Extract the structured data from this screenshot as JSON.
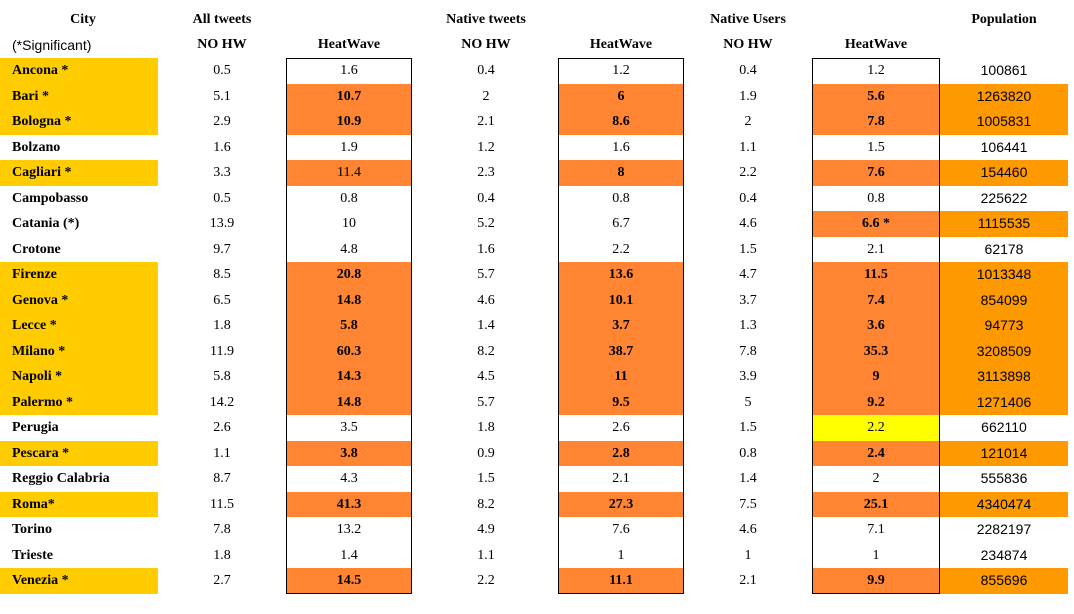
{
  "headers": {
    "city": "City",
    "city_note": "(*Significant)",
    "all_tweets": "All tweets",
    "native_tweets": "Native tweets",
    "native_users": "Native Users",
    "population": "Population",
    "no_hw_1": "NO HW",
    "heatwave_1": "HeatWave",
    "no_hw_2": "NO HW",
    "heatwave_2": "HeatWave",
    "no_hw_3": "NO HW",
    "heatwave_3": "HeatWave"
  },
  "colors": {
    "city_highlight": "#ffcc00",
    "heat_highlight": "#ff8533",
    "pop_highlight": "#ff9900",
    "yellow_highlight": "#ffff00"
  },
  "rows": [
    {
      "city": "Ancona *",
      "cityHL": true,
      "v1": "0.5",
      "v2": "1.6",
      "v2hl": false,
      "v2b": false,
      "v3": "0.4",
      "v4": "1.2",
      "v4hl": false,
      "v4b": false,
      "v5": "0.4",
      "v6": "1.2",
      "v6hl": "",
      "v6b": false,
      "pop": "100861",
      "pophl": false
    },
    {
      "city": "Bari *",
      "cityHL": true,
      "v1": "5.1",
      "v2": "10.7",
      "v2hl": true,
      "v2b": true,
      "v3": "2",
      "v4": "6",
      "v4hl": true,
      "v4b": true,
      "v5": "1.9",
      "v6": "5.6",
      "v6hl": "orange",
      "v6b": true,
      "pop": "1263820",
      "pophl": true
    },
    {
      "city": "Bologna *",
      "cityHL": true,
      "v1": "2.9",
      "v2": "10.9",
      "v2hl": true,
      "v2b": true,
      "v3": "2.1",
      "v4": "8.6",
      "v4hl": true,
      "v4b": true,
      "v5": "2",
      "v6": "7.8",
      "v6hl": "orange",
      "v6b": true,
      "pop": "1005831",
      "pophl": true
    },
    {
      "city": "Bolzano",
      "cityHL": false,
      "v1": "1.6",
      "v2": "1.9",
      "v2hl": false,
      "v2b": false,
      "v3": "1.2",
      "v4": "1.6",
      "v4hl": false,
      "v4b": false,
      "v5": "1.1",
      "v6": "1.5",
      "v6hl": "",
      "v6b": false,
      "pop": "106441",
      "pophl": false
    },
    {
      "city": "Cagliari *",
      "cityHL": true,
      "v1": "3.3",
      "v2": "11.4",
      "v2hl": true,
      "v2b": false,
      "v3": "2.3",
      "v4": "8",
      "v4hl": true,
      "v4b": true,
      "v5": "2.2",
      "v6": "7.6",
      "v6hl": "orange",
      "v6b": true,
      "pop": "154460",
      "pophl": true
    },
    {
      "city": "Campobasso",
      "cityHL": false,
      "v1": "0.5",
      "v2": "0.8",
      "v2hl": false,
      "v2b": false,
      "v3": "0.4",
      "v4": "0.8",
      "v4hl": false,
      "v4b": false,
      "v5": "0.4",
      "v6": "0.8",
      "v6hl": "",
      "v6b": false,
      "pop": "225622",
      "pophl": false
    },
    {
      "city": "Catania (*)",
      "cityHL": false,
      "v1": "13.9",
      "v2": "10",
      "v2hl": false,
      "v2b": false,
      "v3": "5.2",
      "v4": "6.7",
      "v4hl": false,
      "v4b": false,
      "v5": "4.6",
      "v6": "6.6 *",
      "v6hl": "orange",
      "v6b": true,
      "pop": "1115535",
      "pophl": true
    },
    {
      "city": "Crotone",
      "cityHL": false,
      "v1": "9.7",
      "v2": "4.8",
      "v2hl": false,
      "v2b": false,
      "v3": "1.6",
      "v4": "2.2",
      "v4hl": false,
      "v4b": false,
      "v5": "1.5",
      "v6": "2.1",
      "v6hl": "",
      "v6b": false,
      "pop": "62178",
      "pophl": false
    },
    {
      "city": "Firenze",
      "cityHL": true,
      "v1": "8.5",
      "v2": "20.8",
      "v2hl": true,
      "v2b": true,
      "v3": "5.7",
      "v4": "13.6",
      "v4hl": true,
      "v4b": true,
      "v5": "4.7",
      "v6": "11.5",
      "v6hl": "orange",
      "v6b": true,
      "pop": "1013348",
      "pophl": true
    },
    {
      "city": "Genova *",
      "cityHL": true,
      "v1": "6.5",
      "v2": "14.8",
      "v2hl": true,
      "v2b": true,
      "v3": "4.6",
      "v4": "10.1",
      "v4hl": true,
      "v4b": true,
      "v5": "3.7",
      "v6": "7.4",
      "v6hl": "orange",
      "v6b": true,
      "pop": "854099",
      "pophl": true
    },
    {
      "city": "Lecce *",
      "cityHL": true,
      "v1": "1.8",
      "v2": "5.8",
      "v2hl": true,
      "v2b": true,
      "v3": "1.4",
      "v4": "3.7",
      "v4hl": true,
      "v4b": true,
      "v5": "1.3",
      "v6": "3.6",
      "v6hl": "orange",
      "v6b": true,
      "pop": "94773",
      "pophl": true
    },
    {
      "city": "Milano *",
      "cityHL": true,
      "v1": "11.9",
      "v2": "60.3",
      "v2hl": true,
      "v2b": true,
      "v3": "8.2",
      "v4": "38.7",
      "v4hl": true,
      "v4b": true,
      "v5": "7.8",
      "v6": "35.3",
      "v6hl": "orange",
      "v6b": true,
      "pop": "3208509",
      "pophl": true
    },
    {
      "city": "Napoli *",
      "cityHL": true,
      "v1": "5.8",
      "v2": "14.3",
      "v2hl": true,
      "v2b": true,
      "v3": "4.5",
      "v4": "11",
      "v4hl": true,
      "v4b": true,
      "v5": "3.9",
      "v6": "9",
      "v6hl": "orange",
      "v6b": true,
      "pop": "3113898",
      "pophl": true
    },
    {
      "city": "Palermo *",
      "cityHL": true,
      "v1": "14.2",
      "v2": "14.8",
      "v2hl": true,
      "v2b": true,
      "v3": "5.7",
      "v4": "9.5",
      "v4hl": true,
      "v4b": true,
      "v5": "5",
      "v6": "9.2",
      "v6hl": "orange",
      "v6b": true,
      "pop": "1271406",
      "pophl": true
    },
    {
      "city": "Perugia",
      "cityHL": false,
      "v1": "2.6",
      "v2": "3.5",
      "v2hl": false,
      "v2b": false,
      "v3": "1.8",
      "v4": "2.6",
      "v4hl": false,
      "v4b": false,
      "v5": "1.5",
      "v6": "2.2",
      "v6hl": "yellow",
      "v6b": false,
      "pop": "662110",
      "pophl": false
    },
    {
      "city": "Pescara *",
      "cityHL": true,
      "v1": "1.1",
      "v2": "3.8",
      "v2hl": true,
      "v2b": true,
      "v3": "0.9",
      "v4": "2.8",
      "v4hl": true,
      "v4b": true,
      "v5": "0.8",
      "v6": "2.4",
      "v6hl": "orange",
      "v6b": true,
      "pop": "121014",
      "pophl": true
    },
    {
      "city": "Reggio Calabria",
      "cityHL": false,
      "v1": "8.7",
      "v2": "4.3",
      "v2hl": false,
      "v2b": false,
      "v3": "1.5",
      "v4": "2.1",
      "v4hl": false,
      "v4b": false,
      "v5": "1.4",
      "v6": "2",
      "v6hl": "",
      "v6b": false,
      "pop": "555836",
      "pophl": false
    },
    {
      "city": "Roma*",
      "cityHL": true,
      "v1": "11.5",
      "v2": "41.3",
      "v2hl": true,
      "v2b": true,
      "v3": "8.2",
      "v4": "27.3",
      "v4hl": true,
      "v4b": true,
      "v5": "7.5",
      "v6": "25.1",
      "v6hl": "orange",
      "v6b": true,
      "pop": "4340474",
      "pophl": true
    },
    {
      "city": "Torino",
      "cityHL": false,
      "v1": "7.8",
      "v2": "13.2",
      "v2hl": false,
      "v2b": false,
      "v3": "4.9",
      "v4": "7.6",
      "v4hl": false,
      "v4b": false,
      "v5": "4.6",
      "v6": "7.1",
      "v6hl": "",
      "v6b": false,
      "pop": "2282197",
      "pophl": false
    },
    {
      "city": "Trieste",
      "cityHL": false,
      "v1": "1.8",
      "v2": "1.4",
      "v2hl": false,
      "v2b": false,
      "v3": "1.1",
      "v4": "1",
      "v4hl": false,
      "v4b": false,
      "v5": "1",
      "v6": "1",
      "v6hl": "",
      "v6b": false,
      "pop": "234874",
      "pophl": false
    },
    {
      "city": "Venezia *",
      "cityHL": true,
      "v1": "2.7",
      "v2": "14.5",
      "v2hl": true,
      "v2b": true,
      "v3": "2.2",
      "v4": "11.1",
      "v4hl": true,
      "v4b": true,
      "v5": "2.1",
      "v6": "9.9",
      "v6hl": "orange",
      "v6b": true,
      "pop": "855696",
      "pophl": true
    }
  ]
}
